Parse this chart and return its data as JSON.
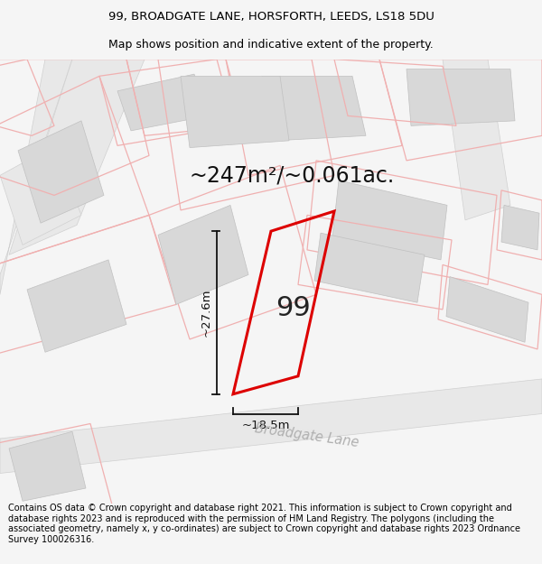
{
  "title_line1": "99, BROADGATE LANE, HORSFORTH, LEEDS, LS18 5DU",
  "title_line2": "Map shows position and indicative extent of the property.",
  "footer_text": "Contains OS data © Crown copyright and database right 2021. This information is subject to Crown copyright and database rights 2023 and is reproduced with the permission of HM Land Registry. The polygons (including the associated geometry, namely x, y co-ordinates) are subject to Crown copyright and database rights 2023 Ordnance Survey 100026316.",
  "area_label": "~247m²/~0.061ac.",
  "width_label": "~18.5m",
  "height_label": "~27.6m",
  "property_number": "99",
  "bg_color": "#f5f5f5",
  "map_bg": "#ffffff",
  "plot_outline_color": "#f0b0b0",
  "plot_color_red": "#dd0000",
  "building_fill": "#d8d8d8",
  "building_edge": "#c0c0c0",
  "road_fill": "#e8e8e8",
  "road_edge": "#d0d0d0",
  "street_label_color": "#b0b0b0",
  "street_name": "Broadgate Lane",
  "dim_color": "#111111",
  "title_fontsize": 9.5,
  "footer_fontsize": 7.0,
  "area_fontsize": 17,
  "dim_fontsize": 9.5,
  "num_fontsize": 22
}
